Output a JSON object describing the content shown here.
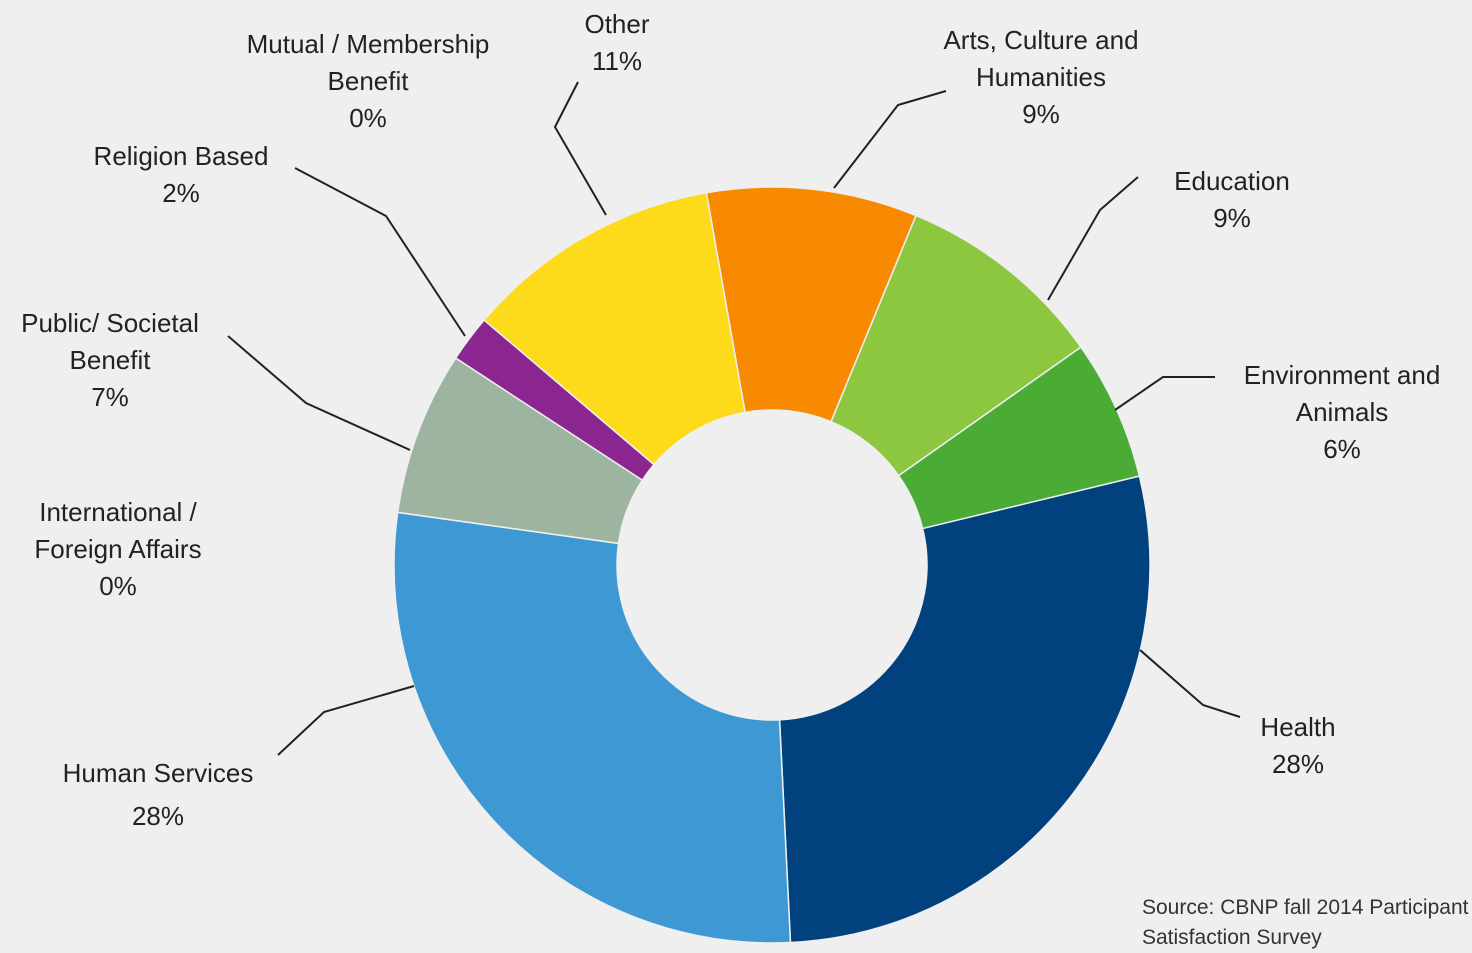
{
  "chart_data": {
    "type": "donut",
    "categories": [
      "Arts, Culture and Humanities",
      "Education",
      "Environment and Animals",
      "Health",
      "Human Services",
      "International / Foreign Affairs",
      "Public/ Societal Benefit",
      "Religion Based",
      "Mutual / Membership Benefit",
      "Other"
    ],
    "values": [
      9,
      9,
      6,
      28,
      28,
      0,
      7,
      2,
      0,
      11
    ],
    "value_labels": [
      "9%",
      "9%",
      "6%",
      "28%",
      "28%",
      "0%",
      "7%",
      "2%",
      "0%",
      "11%"
    ],
    "colors": [
      "#f78a00",
      "#8dc63f",
      "#4aab35",
      "#00417e",
      "#3d98d3",
      "#6a8fb0",
      "#9cb4a0",
      "#8b2590",
      "#c0c0c0",
      "#fedb1a"
    ],
    "source": "Source: CBNP fall 2014 Participant Satisfaction Survey"
  }
}
